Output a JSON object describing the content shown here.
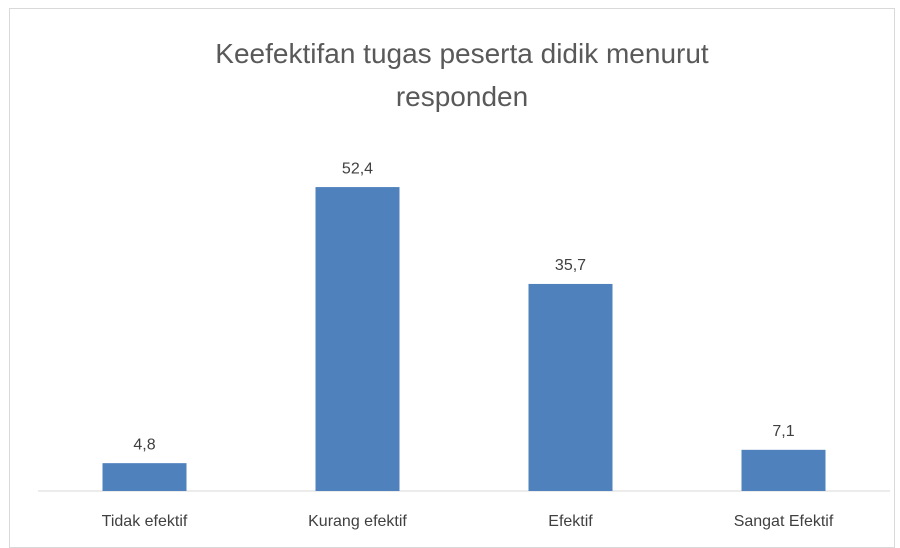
{
  "chart_data": {
    "type": "bar",
    "title": "Keefektifan tugas peserta didik menurut responden",
    "categories": [
      "Tidak efektif",
      "Kurang efektif",
      "Efektif",
      "Sangat Efektif"
    ],
    "values": [
      4.8,
      52.4,
      35.7,
      7.1
    ],
    "value_labels": [
      "4,8",
      "52,4",
      "35,7",
      "7,1"
    ],
    "color": "#4f81bd"
  }
}
